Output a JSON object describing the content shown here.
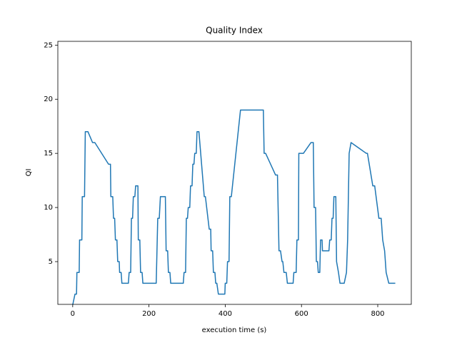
{
  "chart_data": {
    "type": "line",
    "title": "Quality Index",
    "xlabel": "execution time (s)",
    "ylabel": "QI",
    "x": [
      0,
      6,
      10,
      11,
      17,
      18,
      24,
      25,
      31,
      33,
      40,
      52,
      58,
      94,
      99,
      100,
      105,
      107,
      110,
      112,
      116,
      118,
      122,
      123,
      127,
      129,
      146,
      148,
      152,
      154,
      157,
      159,
      163,
      165,
      171,
      172,
      176,
      178,
      182,
      184,
      219,
      223,
      227,
      230,
      243,
      245,
      249,
      251,
      255,
      257,
      290,
      292,
      296,
      298,
      301,
      303,
      307,
      309,
      313,
      315,
      318,
      320,
      324,
      326,
      331,
      345,
      348,
      358,
      362,
      363,
      367,
      369,
      373,
      375,
      378,
      382,
      399,
      400,
      404,
      406,
      410,
      412,
      416,
      440,
      500,
      502,
      506,
      532,
      537,
      541,
      545,
      549,
      551,
      554,
      560,
      563,
      578,
      580,
      586,
      588,
      592,
      593,
      605,
      625,
      631,
      633,
      637,
      639,
      642,
      644,
      648,
      650,
      654,
      655,
      672,
      674,
      678,
      680,
      683,
      685,
      690,
      692,
      697,
      701,
      712,
      718,
      721,
      725,
      730,
      770,
      773,
      787,
      792,
      803,
      809,
      813,
      818,
      822,
      829,
      846
    ],
    "series": [
      {
        "name": "QI",
        "color": "#1f77b4",
        "values": [
          1,
          2,
          2,
          4,
          4,
          7,
          7,
          11,
          11,
          17,
          17,
          16,
          16,
          14,
          14,
          11,
          11,
          9,
          9,
          7,
          7,
          5,
          5,
          4,
          4,
          3,
          3,
          4,
          4,
          9,
          9,
          11,
          11,
          12,
          12,
          7,
          7,
          4,
          4,
          3,
          3,
          9,
          9,
          11,
          11,
          6,
          6,
          4,
          4,
          3,
          3,
          4,
          4,
          9,
          9,
          10,
          10,
          12,
          12,
          14,
          14,
          15,
          15,
          17,
          17,
          11,
          11,
          8,
          8,
          6,
          6,
          4,
          4,
          3,
          3,
          2,
          2,
          3,
          3,
          5,
          5,
          11,
          11,
          19,
          19,
          15,
          15,
          13,
          13,
          6,
          6,
          5,
          5,
          4,
          4,
          3,
          3,
          4,
          4,
          7,
          7,
          15,
          15,
          16,
          16,
          10,
          10,
          5,
          5,
          4,
          4,
          7,
          7,
          6,
          6,
          7,
          7,
          9,
          9,
          11,
          11,
          5,
          4,
          3,
          3,
          4,
          7,
          15,
          16,
          15,
          15,
          12,
          12,
          9,
          9,
          7,
          6,
          4,
          3,
          3
        ]
      }
    ],
    "xlim": [
      -39,
      888
    ],
    "ylim": [
      1.05,
      25.35
    ],
    "xticks": [
      0,
      200,
      400,
      600,
      800
    ],
    "yticks": [
      5,
      10,
      15,
      20,
      25
    ]
  }
}
